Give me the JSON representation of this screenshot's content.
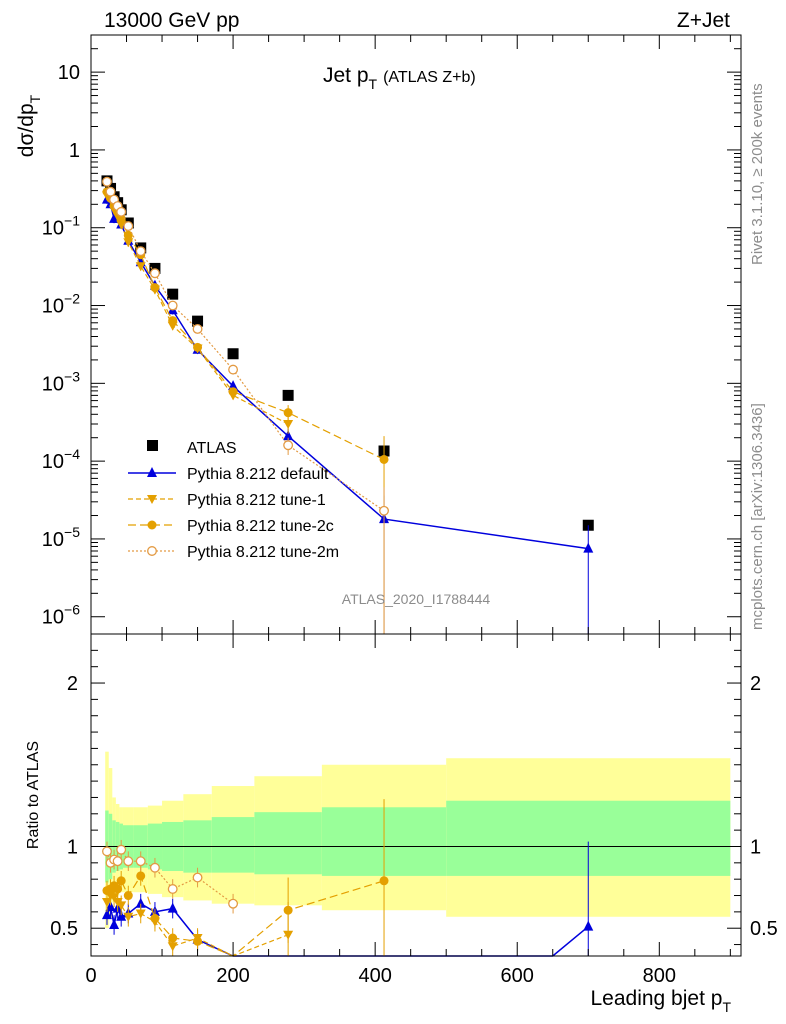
{
  "header": {
    "left": "13000 GeV pp",
    "right": "Z+Jet"
  },
  "title": {
    "main": "Jet p",
    "main_sub": "T",
    "suffix": "(ATLAS Z+b)"
  },
  "side_text": {
    "rivet": "Rivet 3.1.10, ≥ 200k events",
    "mcplots": "mcplots.cern.ch [arXiv:1306.3436]"
  },
  "watermark": "ATLAS_2020_I1788444",
  "legend": {
    "atlas": "ATLAS",
    "default": "Pythia 8.212 default",
    "tune1": "Pythia 8.212 tune-1",
    "tune2c": "Pythia 8.212 tune-2c",
    "tune2m": "Pythia 8.212 tune-2m"
  },
  "axes": {
    "ylabel_main": "dσ/dp",
    "ylabel_main_sub": "T",
    "ylabel_ratio": "Ratio to ATLAS",
    "xlabel": "Leading bjet p",
    "xlabel_sub": "T"
  },
  "colors": {
    "data": "#000000",
    "default": "#0000dd",
    "tunes": "#e4a000",
    "tune2m": "#e39a43",
    "band_inner": "#99ff99",
    "band_outer": "#ffff99"
  },
  "chart_data": [
    {
      "type": "scatter",
      "panel": "main",
      "yscale": "log",
      "xlim": [
        0,
        915
      ],
      "ylim": [
        6e-07,
        30
      ],
      "x_ticks": [
        0,
        200,
        400,
        600,
        800
      ],
      "y_ticks": [
        "10^-6",
        "10^-5",
        "10^-4",
        "10^-3",
        "10^-2",
        "10^-1",
        "1",
        "10"
      ],
      "x": [
        22.5,
        27.5,
        32.5,
        37.5,
        42.5,
        52.5,
        70,
        90,
        115,
        150,
        200,
        277.5,
        412.5,
        700
      ],
      "series": [
        {
          "name": "ATLAS",
          "values": [
            0.4,
            0.32,
            0.25,
            0.21,
            0.17,
            0.115,
            0.055,
            0.03,
            0.014,
            0.0063,
            0.0024,
            0.0007,
            0.000135,
            1.5e-05
          ]
        },
        {
          "name": "Pythia 8.212 default",
          "values": [
            0.23,
            0.2,
            0.13,
            0.13,
            0.11,
            0.068,
            0.036,
            0.018,
            0.0087,
            0.0027,
            0.00092,
            0.00021,
            1.8e-05,
            7.5e-06
          ]
        },
        {
          "name": "Pythia 8.212 tune-1",
          "values": [
            0.26,
            0.23,
            0.17,
            0.14,
            0.11,
            0.065,
            0.032,
            0.016,
            0.0055,
            0.0028,
            0.0007,
            0.0003,
            null,
            null
          ]
        },
        {
          "name": "Pythia 8.212 tune-2c",
          "values": [
            0.29,
            0.24,
            0.19,
            0.16,
            0.13,
            0.08,
            0.045,
            0.017,
            0.0064,
            0.0029,
            0.00078,
            0.00042,
            0.000105,
            null
          ]
        },
        {
          "name": "Pythia 8.212 tune-2m",
          "values": [
            0.39,
            0.29,
            0.23,
            0.19,
            0.16,
            0.105,
            0.05,
            0.026,
            0.01,
            0.005,
            0.0015,
            0.00016,
            2.3e-05,
            null
          ]
        }
      ]
    },
    {
      "type": "scatter",
      "panel": "ratio",
      "xlim": [
        0,
        915
      ],
      "ylim": [
        0.33,
        2.3
      ],
      "x_ticks": [
        0,
        200,
        400,
        600,
        800
      ],
      "y_ticks": [
        0.5,
        1,
        2
      ],
      "bins": [
        [
          20,
          25
        ],
        [
          25,
          30
        ],
        [
          30,
          35
        ],
        [
          35,
          40
        ],
        [
          40,
          45
        ],
        [
          45,
          60
        ],
        [
          60,
          80
        ],
        [
          80,
          100
        ],
        [
          100,
          130
        ],
        [
          130,
          170
        ],
        [
          170,
          230
        ],
        [
          230,
          325
        ],
        [
          325,
          500
        ],
        [
          500,
          900
        ]
      ],
      "bands": {
        "inner_lo": [
          0.78,
          0.8,
          0.84,
          0.85,
          0.86,
          0.87,
          0.87,
          0.86,
          0.85,
          0.84,
          0.84,
          0.83,
          0.82,
          0.82
        ],
        "inner_hi": [
          1.22,
          1.2,
          1.16,
          1.15,
          1.14,
          1.13,
          1.13,
          1.14,
          1.15,
          1.16,
          1.18,
          1.21,
          1.24,
          1.28
        ],
        "outer_lo": [
          0.5,
          0.56,
          0.66,
          0.7,
          0.72,
          0.72,
          0.72,
          0.71,
          0.69,
          0.67,
          0.65,
          0.64,
          0.61,
          0.57
        ],
        "outer_hi": [
          1.58,
          1.48,
          1.3,
          1.26,
          1.24,
          1.24,
          1.24,
          1.25,
          1.28,
          1.32,
          1.37,
          1.43,
          1.5,
          1.54
        ]
      },
      "series": [
        {
          "name": "Pythia 8.212 default",
          "x": [
            22.5,
            27.5,
            32.5,
            37.5,
            42.5,
            52.5,
            70,
            90,
            115,
            150,
            200,
            650,
            700
          ],
          "values": [
            0.58,
            0.63,
            0.52,
            0.62,
            0.57,
            0.59,
            0.65,
            0.6,
            0.62,
            0.43,
            0.33,
            0.33,
            0.51
          ]
        },
        {
          "name": "Pythia 8.212 tune-1",
          "x": [
            22.5,
            27.5,
            32.5,
            37.5,
            42.5,
            52.5,
            70,
            90,
            115,
            150,
            200,
            277.5
          ],
          "values": [
            0.66,
            0.7,
            0.69,
            0.66,
            0.64,
            0.57,
            0.59,
            0.54,
            0.39,
            0.44,
            0.29,
            0.46
          ]
        },
        {
          "name": "Pythia 8.212 tune-2c",
          "x": [
            22.5,
            27.5,
            32.5,
            37.5,
            42.5,
            52.5,
            70,
            90,
            115,
            150,
            200,
            277.5,
            412.5
          ],
          "values": [
            0.73,
            0.74,
            0.76,
            0.74,
            0.79,
            0.7,
            0.82,
            0.56,
            0.44,
            0.42,
            0.32,
            0.61,
            0.79
          ]
        },
        {
          "name": "Pythia 8.212 tune-2m",
          "x": [
            22.5,
            27.5,
            32.5,
            37.5,
            42.5,
            52.5,
            70,
            90,
            115,
            150,
            200
          ],
          "values": [
            0.97,
            0.9,
            0.92,
            0.91,
            0.98,
            0.91,
            0.91,
            0.87,
            0.74,
            0.81,
            0.65
          ]
        }
      ]
    }
  ]
}
